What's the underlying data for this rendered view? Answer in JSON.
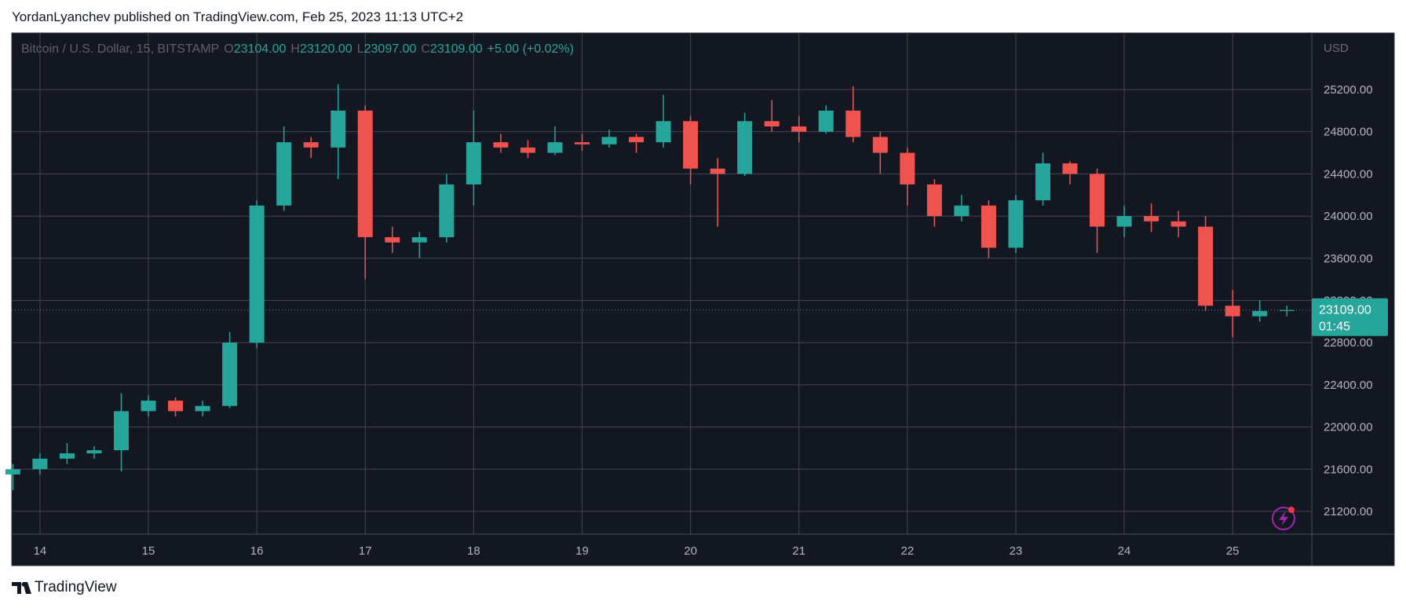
{
  "chart_data": {
    "type": "candlestick",
    "attribution": "YordanLyanchev published on TradingView.com, Feb 25, 2023 11:13 UTC+2",
    "legend": {
      "symbol": "Bitcoin / U.S. Dollar, 15, BITSTAMP",
      "fields": [
        {
          "key": "O",
          "value": "23104.00"
        },
        {
          "key": "H",
          "value": "23120.00"
        },
        {
          "key": "L",
          "value": "23097.00"
        },
        {
          "key": "C",
          "value": "23109.00"
        }
      ],
      "change": "+5.00 (+0.02%)"
    },
    "currency": "USD",
    "last_price": {
      "value": 23109,
      "label": "23109.00",
      "countdown": "01:45"
    },
    "brand": "TradingView",
    "up_color": "#26a69a",
    "down_color": "#ef5350",
    "grid": true,
    "x": [
      13.75,
      14,
      14.25,
      14.5,
      14.75,
      15,
      15.25,
      15.5,
      15.75,
      16,
      16.25,
      16.5,
      16.75,
      17,
      17.25,
      17.5,
      17.75,
      18,
      18.25,
      18.5,
      18.75,
      19,
      19.25,
      19.5,
      19.75,
      20,
      20.25,
      20.5,
      20.75,
      21,
      21.25,
      21.5,
      21.75,
      22,
      22.25,
      22.5,
      22.75,
      23,
      23.25,
      23.5,
      23.75,
      24,
      24.25,
      24.5,
      24.75,
      25,
      25.25,
      25.5
    ],
    "open": [
      21550,
      21600,
      21700,
      21750,
      21780,
      22150,
      22250,
      22150,
      22200,
      22800,
      24100,
      24700,
      24650,
      25000,
      23800,
      23750,
      23800,
      24300,
      24700,
      24650,
      24600,
      24700,
      24680,
      24750,
      24700,
      24900,
      24450,
      24400,
      24900,
      24850,
      24800,
      25000,
      24750,
      24600,
      24300,
      24000,
      24100,
      23700,
      24150,
      24500,
      24400,
      23900,
      24000,
      23950,
      23900,
      23150,
      23050,
      23100
    ],
    "high": [
      21650,
      21750,
      21850,
      21820,
      22320,
      22300,
      22280,
      22250,
      22900,
      24150,
      24850,
      24750,
      25250,
      25050,
      23900,
      23850,
      24400,
      25000,
      24780,
      24720,
      24850,
      24780,
      24820,
      24780,
      25150,
      24950,
      24550,
      24980,
      25100,
      24950,
      25050,
      25230,
      24800,
      24650,
      24350,
      24200,
      24150,
      24200,
      24600,
      24520,
      24450,
      24100,
      24120,
      24050,
      24000,
      23300,
      23200,
      23150
    ],
    "low": [
      21400,
      21550,
      21650,
      21700,
      21580,
      22100,
      22100,
      22100,
      22180,
      22750,
      24050,
      24550,
      24350,
      23400,
      23650,
      23600,
      23750,
      24100,
      24600,
      24550,
      24580,
      24620,
      24650,
      24600,
      24650,
      24300,
      23900,
      24380,
      24800,
      24700,
      24780,
      24700,
      24400,
      24100,
      23900,
      23950,
      23600,
      23650,
      24100,
      24300,
      23650,
      23800,
      23850,
      23800,
      23100,
      22850,
      23000,
      23050
    ],
    "close": [
      21600,
      21700,
      21750,
      21780,
      22150,
      22250,
      22150,
      22200,
      22800,
      24100,
      24700,
      24650,
      25000,
      23800,
      23750,
      23800,
      24300,
      24700,
      24650,
      24600,
      24700,
      24680,
      24750,
      24700,
      24900,
      24450,
      24400,
      24900,
      24850,
      24800,
      25000,
      24750,
      24600,
      24300,
      24000,
      24100,
      23700,
      24150,
      24500,
      24400,
      23900,
      24000,
      23950,
      23900,
      23150,
      23050,
      23100,
      23109
    ],
    "xlim": [
      13.74,
      25.73
    ],
    "xticks": [
      14,
      15,
      16,
      17,
      18,
      19,
      20,
      21,
      22,
      23,
      24,
      25
    ],
    "ylim": [
      20984,
      25736
    ],
    "yticks": [
      {
        "value": 21200,
        "label": "21200.00"
      },
      {
        "value": 21600,
        "label": "21600.00"
      },
      {
        "value": 22000,
        "label": "22000.00"
      },
      {
        "value": 22400,
        "label": "22400.00"
      },
      {
        "value": 22800,
        "label": "22800.00"
      },
      {
        "value": 23200,
        "label": "23200.00"
      },
      {
        "value": 23600,
        "label": "23600.00"
      },
      {
        "value": 24000,
        "label": "24000.00"
      },
      {
        "value": 24400,
        "label": "24400.00"
      },
      {
        "value": 24800,
        "label": "24800.00"
      },
      {
        "value": 25200,
        "label": "25200.00"
      }
    ]
  }
}
